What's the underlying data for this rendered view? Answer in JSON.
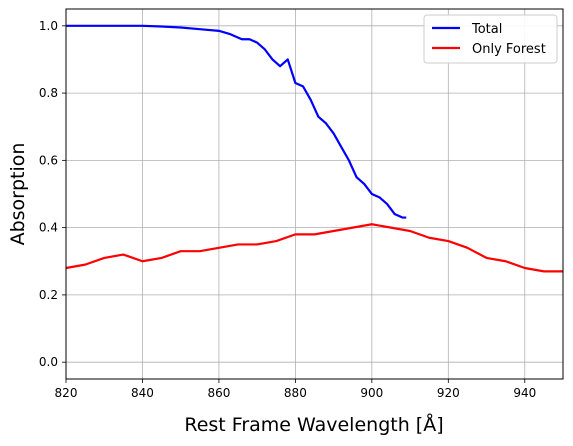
{
  "chart_data": {
    "type": "line",
    "title": "",
    "xlabel": "Rest Frame Wavelength [Å]",
    "ylabel": "Absorption",
    "xlim": [
      820,
      950
    ],
    "ylim": [
      -0.05,
      1.05
    ],
    "xticks": [
      820,
      840,
      860,
      880,
      900,
      920,
      940
    ],
    "yticks": [
      0.0,
      0.2,
      0.4,
      0.6,
      0.8,
      1.0
    ],
    "xtick_labels": [
      "820",
      "840",
      "860",
      "880",
      "900",
      "920",
      "940"
    ],
    "ytick_labels": [
      "0.0",
      "0.2",
      "0.4",
      "0.6",
      "0.8",
      "1.0"
    ],
    "grid": true,
    "legend_position": "top-right",
    "series": [
      {
        "name": "Total",
        "color": "#0000ff",
        "x": [
          820,
          830,
          840,
          845,
          850,
          855,
          860,
          863,
          866,
          868,
          870,
          872,
          874,
          876,
          878,
          880,
          882,
          884,
          886,
          888,
          890,
          892,
          894,
          896,
          898,
          900,
          902,
          904,
          906,
          908,
          909
        ],
        "y": [
          1.0,
          1.0,
          1.0,
          0.998,
          0.995,
          0.99,
          0.985,
          0.975,
          0.96,
          0.96,
          0.95,
          0.93,
          0.9,
          0.88,
          0.9,
          0.83,
          0.82,
          0.78,
          0.73,
          0.71,
          0.68,
          0.64,
          0.6,
          0.55,
          0.53,
          0.5,
          0.49,
          0.47,
          0.44,
          0.43,
          0.43
        ]
      },
      {
        "name": "Only Forest",
        "color": "#ff0000",
        "x": [
          820,
          825,
          830,
          835,
          840,
          845,
          850,
          855,
          860,
          865,
          870,
          875,
          880,
          885,
          890,
          895,
          900,
          905,
          910,
          915,
          920,
          925,
          930,
          935,
          940,
          945,
          950
        ],
        "y": [
          0.28,
          0.29,
          0.31,
          0.32,
          0.3,
          0.31,
          0.33,
          0.33,
          0.34,
          0.35,
          0.35,
          0.36,
          0.38,
          0.38,
          0.39,
          0.4,
          0.41,
          0.4,
          0.39,
          0.37,
          0.36,
          0.34,
          0.31,
          0.3,
          0.28,
          0.27,
          0.27
        ]
      }
    ]
  }
}
